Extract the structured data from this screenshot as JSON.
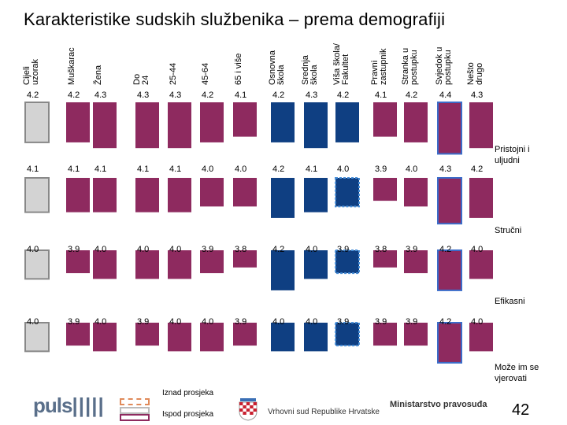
{
  "title": "Karakteristike sudskih službenika – prema demografiji",
  "chart_data": {
    "type": "bar",
    "columns": [
      {
        "label": "Cijeli uzorak",
        "group": "total"
      },
      {
        "label": "Muškarac",
        "group": "demo"
      },
      {
        "label": "Žena",
        "group": "demo"
      },
      {
        "label": "Do 24",
        "group": "demo"
      },
      {
        "label": "25-44",
        "group": "demo"
      },
      {
        "label": "45-64",
        "group": "demo"
      },
      {
        "label": "65 i više",
        "group": "demo"
      },
      {
        "label": "Osnovna škola",
        "group": "edu"
      },
      {
        "label": "Srednja škola",
        "group": "edu"
      },
      {
        "label": "Viša škola/ Fakultet",
        "group": "edu"
      },
      {
        "label": "Pravni zastupnik",
        "group": "edu"
      },
      {
        "label": "Stranka u postupku",
        "group": "edu"
      },
      {
        "label": "Svjedok u postupku",
        "group": "role"
      },
      {
        "label": "Nešto drugo",
        "group": "role"
      }
    ],
    "rows": [
      {
        "label": "Pristojni i uljudni",
        "values": [
          "4.2",
          "4.2",
          "4.3",
          "4.3",
          "4.3",
          "4.2",
          "4.1",
          "4.2",
          "4.3",
          "4.2",
          "4.1",
          "4.2",
          "4.4",
          "4.3"
        ],
        "styles": [
          "gray",
          "magenta",
          "magenta",
          "magenta",
          "magenta",
          "magenta",
          "magenta",
          "blue",
          "blue",
          "blue",
          "magenta",
          "magenta",
          "magenta-outline",
          "magenta"
        ]
      },
      {
        "label": "Stručni",
        "values": [
          "4.1",
          "4.1",
          "4.1",
          "4.1",
          "4.1",
          "4.0",
          "4.0",
          "4.2",
          "4.1",
          "4.0",
          "3.9",
          "4.0",
          "4.3",
          "4.2"
        ],
        "styles": [
          "gray",
          "magenta",
          "magenta",
          "magenta",
          "magenta",
          "magenta",
          "magenta",
          "blue",
          "blue",
          "blue-outline",
          "magenta",
          "magenta",
          "magenta-outline",
          "magenta"
        ]
      },
      {
        "label": "Efikasni",
        "values": [
          "4.0",
          "3.9",
          "4.0",
          "4.0",
          "4.0",
          "3.9",
          "3.8",
          "4.2",
          "4.0",
          "3.9",
          "3.8",
          "3.9",
          "4.2",
          "4.0"
        ],
        "styles": [
          "gray",
          "magenta",
          "magenta",
          "magenta",
          "magenta",
          "magenta",
          "magenta",
          "blue",
          "blue",
          "blue-outline",
          "magenta",
          "magenta",
          "magenta-outline",
          "magenta"
        ]
      },
      {
        "label": "Može im se vjerovati",
        "values": [
          "4.0",
          "3.9",
          "4.0",
          "3.9",
          "4.0",
          "4.0",
          "3.9",
          "4.0",
          "4.0",
          "3.9",
          "3.9",
          "3.9",
          "4.2",
          "4.0"
        ],
        "styles": [
          "gray",
          "magenta",
          "magenta",
          "magenta",
          "magenta",
          "magenta",
          "magenta",
          "blue",
          "blue",
          "blue-outline",
          "magenta",
          "magenta",
          "magenta-outline",
          "magenta"
        ]
      }
    ],
    "colors": {
      "gray": "#d3d3d3",
      "magenta": "#8e2a5f",
      "blue": "#0f3f82"
    }
  },
  "legend": {
    "above": "Iznad prosjeka",
    "below": "Ispod prosjeka"
  },
  "footer": {
    "logo": "puls",
    "court": "Vrhovni sud Republike Hrvatske",
    "ministry": "Ministarstvo pravosuđa",
    "page": "42"
  }
}
